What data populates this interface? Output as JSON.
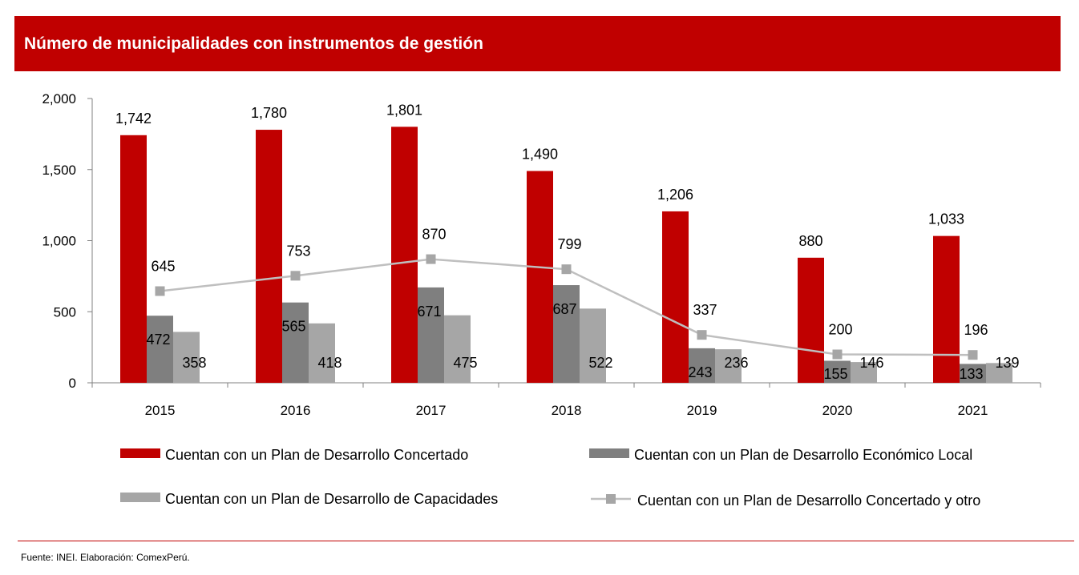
{
  "header": {
    "title": "Número de municipalidades con instrumentos de gestión"
  },
  "colors": {
    "header_bg": "#c00000",
    "series": [
      "#c00000",
      "#7f7f7f",
      "#a6a6a6",
      "#bfbfbf"
    ]
  },
  "footer": {
    "source": "Fuente: INEI. Elaboración: ComexPerú."
  },
  "chart_data": {
    "type": "bar",
    "title": "Número de municipalidades con instrumentos de gestión",
    "xlabel": "",
    "ylabel": "",
    "ylim": [
      0,
      2000
    ],
    "yticks": [
      0,
      500,
      1000,
      1500,
      2000
    ],
    "ytick_labels": [
      "0",
      "500",
      "1,000",
      "1,500",
      "2,000"
    ],
    "grid": false,
    "legend_position": "bottom",
    "categories": [
      "2015",
      "2016",
      "2017",
      "2018",
      "2019",
      "2020",
      "2021"
    ],
    "series": [
      {
        "name": "Cuentan con un Plan de Desarrollo Concertado",
        "kind": "bar",
        "values": [
          1742,
          1780,
          1801,
          1490,
          1206,
          880,
          1033
        ],
        "labels": [
          "1,742",
          "1,780",
          "1,801",
          "1,490",
          "1,206",
          "880",
          "1,033"
        ]
      },
      {
        "name": "Cuentan con un Plan de Desarrollo Económico Local",
        "kind": "bar",
        "values": [
          472,
          565,
          671,
          687,
          243,
          155,
          133
        ],
        "labels": [
          "472",
          "565",
          "671",
          "687",
          "243",
          "155",
          "133"
        ]
      },
      {
        "name": "Cuentan con un Plan de Desarrollo de Capacidades",
        "kind": "bar",
        "values": [
          358,
          418,
          475,
          522,
          236,
          146,
          139
        ],
        "labels": [
          "358",
          "418",
          "475",
          "522",
          "236",
          "146",
          "139"
        ]
      },
      {
        "name": "Cuentan con un Plan de Desarrollo Concertado y otro",
        "kind": "line",
        "values": [
          645,
          753,
          870,
          799,
          337,
          200,
          196
        ],
        "labels": [
          "645",
          "753",
          "870",
          "799",
          "337",
          "200",
          "196"
        ]
      }
    ]
  }
}
